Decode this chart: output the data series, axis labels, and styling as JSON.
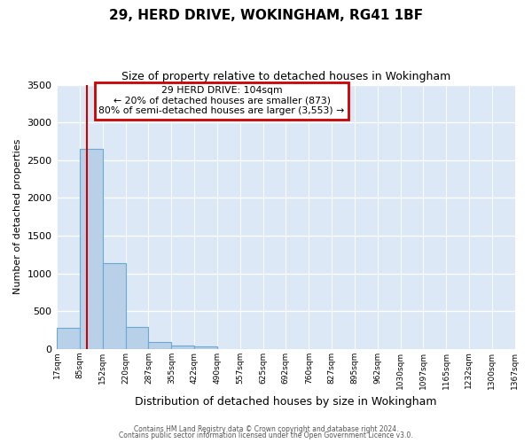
{
  "title_line1": "29, HERD DRIVE, WOKINGHAM, RG41 1BF",
  "title_line2": "Size of property relative to detached houses in Wokingham",
  "xlabel": "Distribution of detached houses by size in Wokingham",
  "ylabel": "Number of detached properties",
  "bar_color": "#b8d0e8",
  "bar_edge_color": "#6aaad4",
  "bg_color": "#dce8f5",
  "fig_bg_color": "#ffffff",
  "grid_color": "#ffffff",
  "vline_color": "#cc0000",
  "vline_x": 104,
  "annotation_title": "29 HERD DRIVE: 104sqm",
  "annotation_line2": "← 20% of detached houses are smaller (873)",
  "annotation_line3": "80% of semi-detached houses are larger (3,553) →",
  "annotation_box_color": "#cc0000",
  "bin_edges": [
    17,
    85,
    152,
    220,
    287,
    355,
    422,
    490,
    557,
    625,
    692,
    760,
    827,
    895,
    962,
    1030,
    1097,
    1165,
    1232,
    1300,
    1367
  ],
  "bin_counts": [
    280,
    2650,
    1140,
    285,
    90,
    40,
    35,
    0,
    0,
    0,
    0,
    0,
    0,
    0,
    0,
    0,
    0,
    0,
    0,
    0
  ],
  "ylim": [
    0,
    3500
  ],
  "yticks": [
    0,
    500,
    1000,
    1500,
    2000,
    2500,
    3000,
    3500
  ],
  "footer_line1": "Contains HM Land Registry data © Crown copyright and database right 2024.",
  "footer_line2": "Contains public sector information licensed under the Open Government Licence v3.0.",
  "tick_labels": [
    "17sqm",
    "85sqm",
    "152sqm",
    "220sqm",
    "287sqm",
    "355sqm",
    "422sqm",
    "490sqm",
    "557sqm",
    "625sqm",
    "692sqm",
    "760sqm",
    "827sqm",
    "895sqm",
    "962sqm",
    "1030sqm",
    "1097sqm",
    "1165sqm",
    "1232sqm",
    "1300sqm",
    "1367sqm"
  ]
}
